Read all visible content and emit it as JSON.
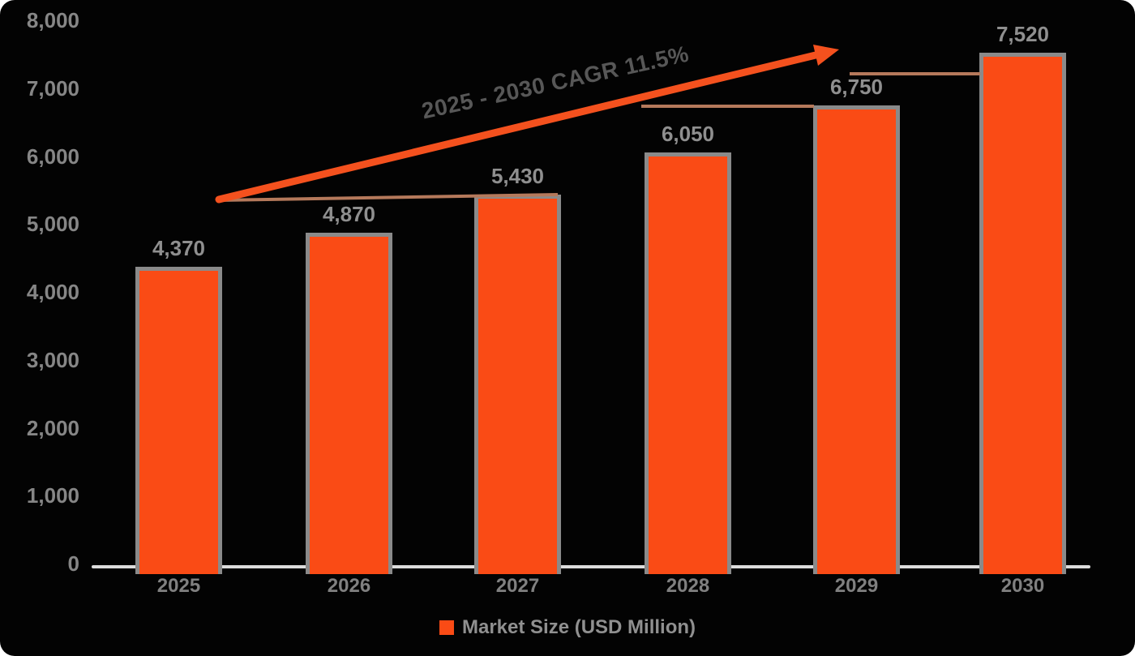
{
  "chart_data": {
    "type": "bar",
    "title": "",
    "categories": [
      "2025",
      "2026",
      "2027",
      "2028",
      "2029",
      "2030"
    ],
    "values": [
      4370,
      4870,
      5430,
      6050,
      6750,
      7520
    ],
    "bar_labels": [
      "4,370",
      "4,870",
      "5,430",
      "6,050",
      "6,750",
      "7,520"
    ],
    "series": [
      {
        "name": "Market Size (USD Million)",
        "values": [
          4370,
          4870,
          5430,
          6050,
          6750,
          7520
        ]
      }
    ],
    "y_tick_labels": [
      "8,000",
      "7,000",
      "6,000",
      "5,000",
      "4,000",
      "3,000",
      "2,000",
      "1,000",
      "0"
    ],
    "y_tick_values": [
      8000,
      7000,
      6000,
      5000,
      4000,
      3000,
      2000,
      1000,
      0
    ],
    "ylim": [
      0,
      8000
    ],
    "xlabel": "",
    "ylabel": "",
    "grid": false,
    "legend": {
      "position": "bottom",
      "label": "Market Size (USD Million)"
    },
    "annotation": {
      "text": "2025 - 2030 CAGR 11.5%"
    },
    "colors": {
      "bar_fill": "#FA4B15",
      "bar_border": "#8A8A8A",
      "arrow": "#F4511E",
      "trend_shadow": "#B5795B",
      "axis_line": "#DCDCDC",
      "tick_text": "#868686",
      "annotation_text": "#575757",
      "background": "#030303"
    }
  }
}
